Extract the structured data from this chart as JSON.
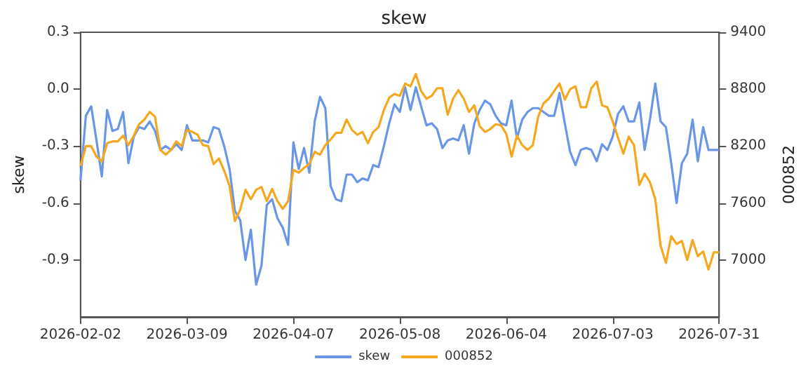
{
  "chart_data": {
    "type": "line",
    "title": "skew",
    "ylabel": "skew",
    "y2label": "000852",
    "categories": [
      "2026-02-02",
      null,
      null,
      null,
      null,
      null,
      null,
      null,
      null,
      null,
      null,
      null,
      null,
      null,
      null,
      null,
      null,
      null,
      null,
      null,
      "2026-03-09",
      null,
      null,
      null,
      null,
      null,
      null,
      null,
      null,
      null,
      null,
      null,
      null,
      null,
      null,
      null,
      null,
      null,
      null,
      null,
      "2026-04-07",
      null,
      null,
      null,
      null,
      null,
      null,
      null,
      null,
      null,
      null,
      null,
      null,
      null,
      null,
      null,
      null,
      null,
      null,
      null,
      "2026-05-08",
      null,
      null,
      null,
      null,
      null,
      null,
      null,
      null,
      null,
      null,
      null,
      null,
      null,
      null,
      null,
      null,
      null,
      null,
      null,
      "2026-06-04",
      null,
      null,
      null,
      null,
      null,
      null,
      null,
      null,
      null,
      null,
      null,
      null,
      null,
      null,
      null,
      null,
      null,
      null,
      null,
      "2026-07-03",
      null,
      null,
      null,
      null,
      null,
      null,
      null,
      null,
      null,
      null,
      null,
      null,
      null,
      null,
      null,
      null,
      null,
      null,
      null,
      "2026-07-31"
    ],
    "series": [
      {
        "name": "skew",
        "color": "#6a96e6",
        "values": [
          -0.48,
          -0.14,
          -0.09,
          -0.27,
          -0.46,
          -0.11,
          -0.22,
          -0.21,
          -0.12,
          -0.39,
          -0.25,
          -0.2,
          -0.21,
          -0.17,
          -0.22,
          -0.32,
          -0.3,
          -0.32,
          -0.29,
          -0.32,
          -0.19,
          -0.27,
          -0.27,
          -0.27,
          -0.28,
          -0.2,
          -0.21,
          -0.3,
          -0.42,
          -0.64,
          -0.69,
          -0.9,
          -0.74,
          -1.03,
          -0.93,
          -0.61,
          -0.58,
          -0.68,
          -0.73,
          -0.82,
          -0.28,
          -0.42,
          -0.31,
          -0.44,
          -0.17,
          -0.04,
          -0.1,
          -0.51,
          -0.58,
          -0.59,
          -0.45,
          -0.45,
          -0.49,
          -0.47,
          -0.48,
          -0.4,
          -0.41,
          -0.3,
          -0.18,
          -0.08,
          -0.12,
          0.01,
          -0.11,
          0.01,
          -0.09,
          -0.19,
          -0.18,
          -0.21,
          -0.31,
          -0.27,
          -0.26,
          -0.27,
          -0.19,
          -0.34,
          -0.18,
          -0.11,
          -0.06,
          -0.08,
          -0.14,
          -0.18,
          -0.19,
          -0.06,
          -0.26,
          -0.16,
          -0.12,
          -0.1,
          -0.1,
          -0.12,
          -0.14,
          -0.14,
          -0.02,
          -0.18,
          -0.33,
          -0.4,
          -0.32,
          -0.31,
          -0.32,
          -0.38,
          -0.29,
          -0.32,
          -0.25,
          -0.13,
          -0.09,
          -0.17,
          -0.17,
          -0.07,
          -0.32,
          -0.16,
          0.03,
          -0.17,
          -0.2,
          -0.39,
          -0.6,
          -0.39,
          -0.34,
          -0.16,
          -0.38,
          -0.2,
          -0.32,
          -0.32,
          -0.32
        ]
      },
      {
        "name": "000852",
        "color": "#f5a81f",
        "axis": "y2",
        "values": [
          7990,
          8200,
          8200,
          8090,
          8040,
          8230,
          8250,
          8250,
          8310,
          8210,
          8310,
          8430,
          8480,
          8560,
          8510,
          8160,
          8110,
          8160,
          8250,
          8200,
          8370,
          8350,
          8320,
          8210,
          8200,
          8010,
          8070,
          7940,
          7780,
          7410,
          7530,
          7740,
          7640,
          7740,
          7770,
          7620,
          7750,
          7620,
          7540,
          7620,
          7950,
          7920,
          7970,
          8010,
          8140,
          8110,
          8210,
          8270,
          8340,
          8340,
          8480,
          8370,
          8320,
          8350,
          8230,
          8350,
          8400,
          8580,
          8710,
          8750,
          8730,
          8860,
          8830,
          8960,
          8780,
          8700,
          8730,
          8810,
          8810,
          8530,
          8700,
          8790,
          8700,
          8560,
          8630,
          8410,
          8350,
          8380,
          8430,
          8420,
          8330,
          8090,
          8310,
          8210,
          8160,
          8210,
          8510,
          8650,
          8700,
          8780,
          8860,
          8690,
          8800,
          8830,
          8610,
          8610,
          8810,
          8880,
          8630,
          8610,
          8460,
          8290,
          8120,
          8300,
          8210,
          7790,
          7910,
          7820,
          7640,
          7150,
          6970,
          7250,
          7170,
          7200,
          7000,
          7210,
          7040,
          7090,
          6900,
          7080,
          7080
        ]
      }
    ],
    "ylim": [
      -1.2,
      0.3
    ],
    "yticks": [
      {
        "value": -0.9,
        "label": "-0.9"
      },
      {
        "value": -0.6,
        "label": "-0.6"
      },
      {
        "value": -0.3,
        "label": "-0.3"
      },
      {
        "value": 0,
        "label": "0.0"
      },
      {
        "value": 0.3,
        "label": "0.3"
      }
    ],
    "y2lim": [
      6400,
      9400
    ],
    "y2ticks": [
      7000,
      7600,
      8200,
      8800,
      9400
    ],
    "legend": "bottom",
    "grid": false,
    "marker": "none",
    "line_style": "solid"
  }
}
